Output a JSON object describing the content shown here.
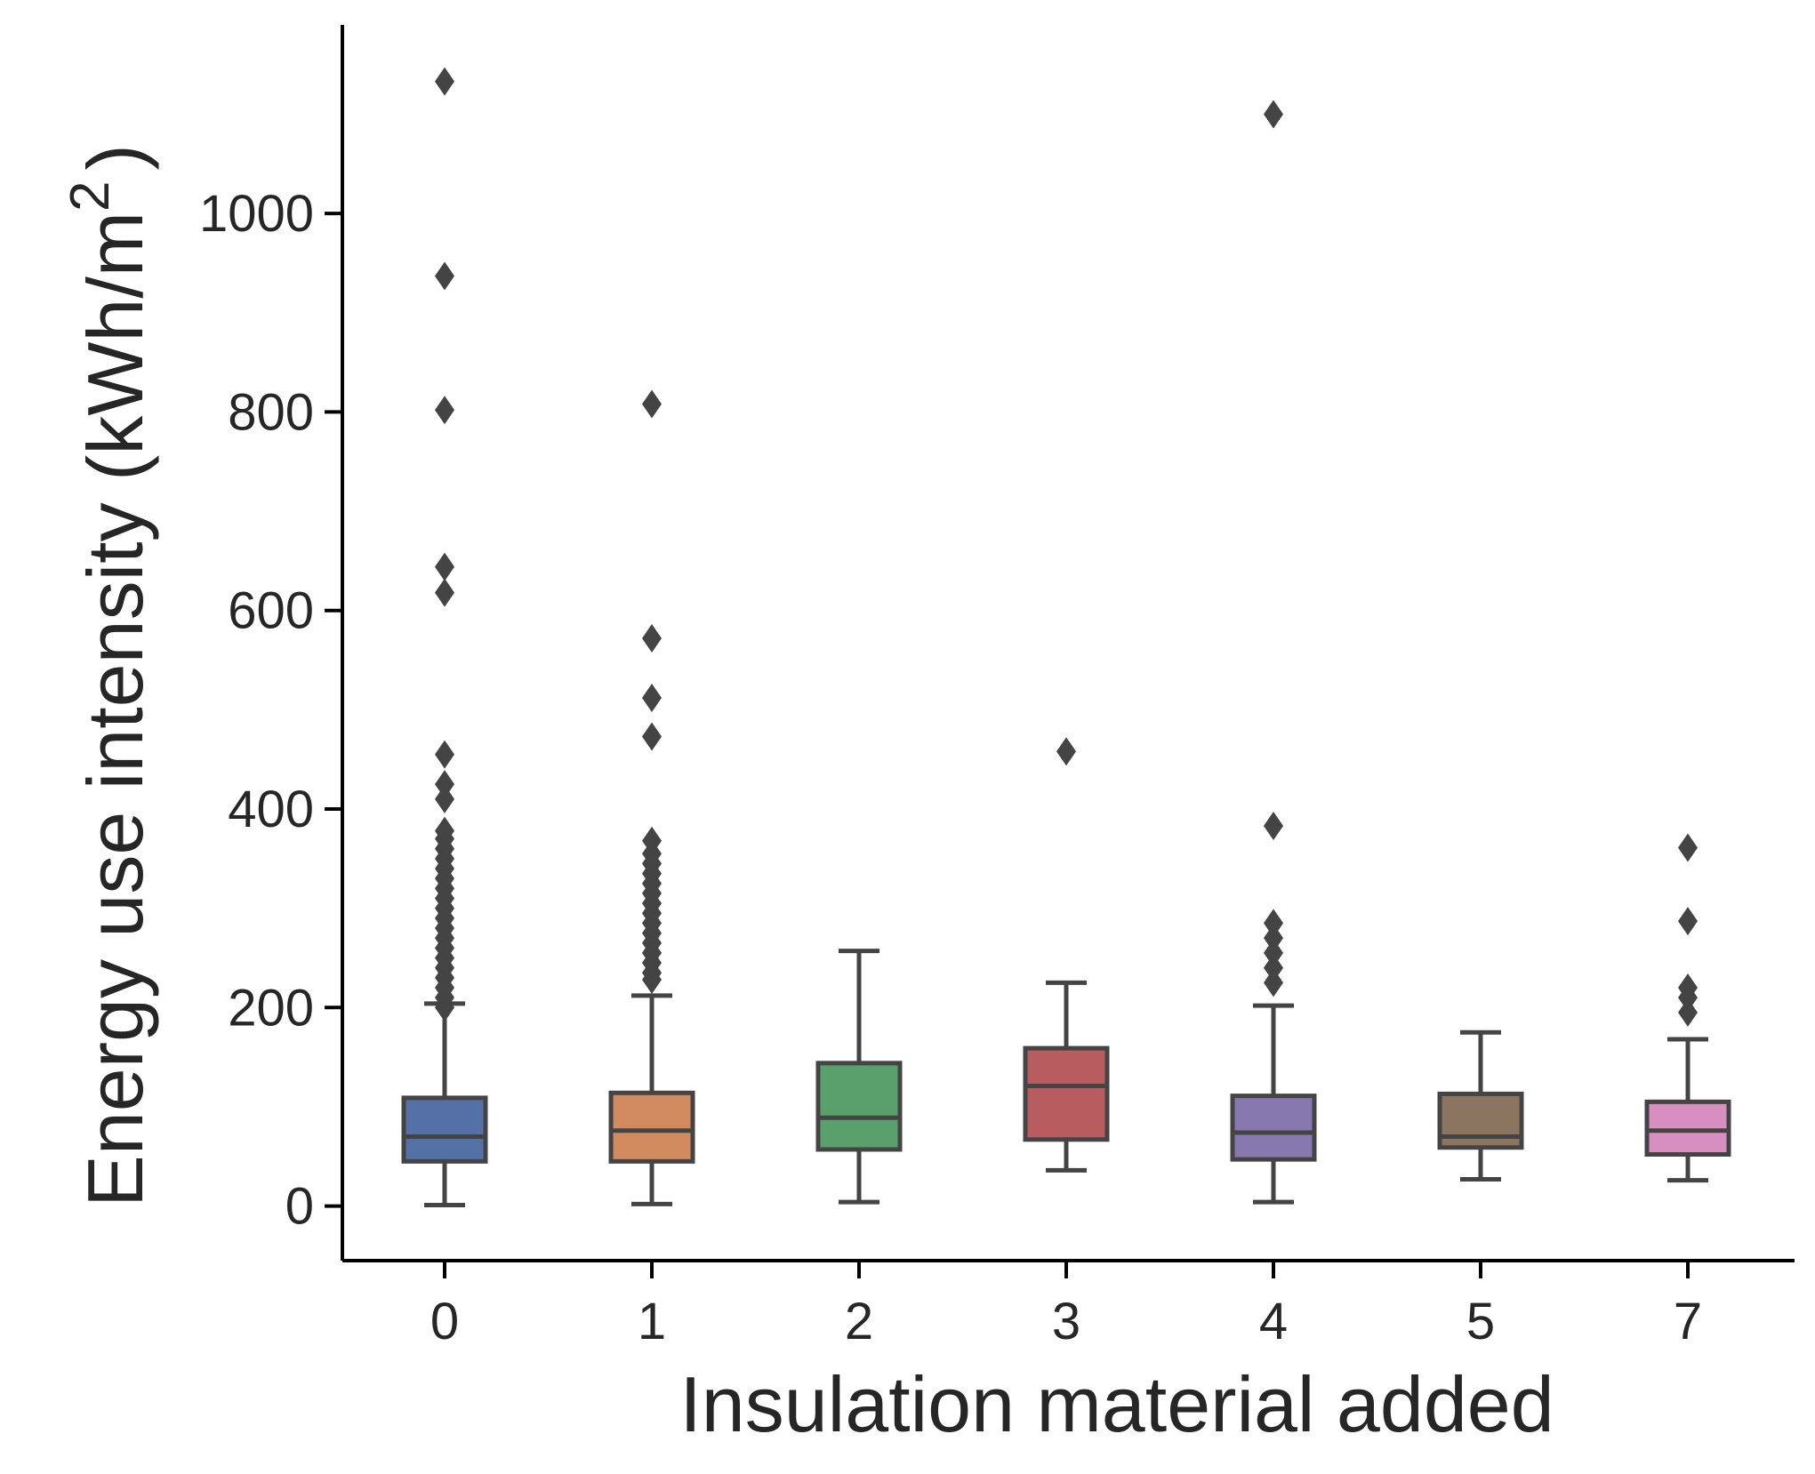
{
  "chart_data": {
    "type": "box",
    "xlabel": "Insulation material added",
    "ylabel": "Energy use intensity (kWh/m",
    "ylabel_superscript": "2",
    "ylabel_close": ")",
    "ylim": [
      -55,
      1190
    ],
    "yticks": [
      0,
      200,
      400,
      600,
      800,
      1000
    ],
    "ytick_labels": [
      "0",
      "200",
      "400",
      "600",
      "800",
      "1000"
    ],
    "categories": [
      "0",
      "1",
      "2",
      "3",
      "4",
      "5",
      "7"
    ],
    "grid": false,
    "legend": "none",
    "colors": {
      "edge": "#444444",
      "axis": "#000000",
      "text": "#262626",
      "boxes": [
        "#5471a7",
        "#d28a5f",
        "#5aa06c",
        "#b95c5f",
        "#8779b0",
        "#8b7561",
        "#d68fbf"
      ]
    },
    "boxes": [
      {
        "category": "0",
        "whislo": 1,
        "q1": 45,
        "med": 70,
        "q3": 109,
        "whishi": 204,
        "fliers": [
          1133,
          937,
          802,
          644,
          618,
          455,
          425,
          410,
          378,
          370,
          360,
          350,
          340,
          330,
          320,
          310,
          300,
          290,
          280,
          270,
          260,
          250,
          240,
          230,
          220,
          210,
          200
        ]
      },
      {
        "category": "1",
        "whislo": 2,
        "q1": 45,
        "med": 76,
        "q3": 114,
        "whishi": 212,
        "fliers": [
          808,
          572,
          512,
          473,
          368,
          355,
          345,
          335,
          325,
          315,
          305,
          295,
          285,
          275,
          265,
          255,
          245,
          235,
          228
        ]
      },
      {
        "category": "2",
        "whislo": 4,
        "q1": 57,
        "med": 89,
        "q3": 144,
        "whishi": 257,
        "fliers": []
      },
      {
        "category": "3",
        "whislo": 36,
        "q1": 67,
        "med": 121,
        "q3": 159,
        "whishi": 225,
        "fliers": [
          458
        ]
      },
      {
        "category": "4",
        "whislo": 4,
        "q1": 47,
        "med": 74,
        "q3": 111,
        "whishi": 202,
        "fliers": [
          1100,
          383,
          285,
          270,
          255,
          240,
          225
        ]
      },
      {
        "category": "5",
        "whislo": 27,
        "q1": 59,
        "med": 70,
        "q3": 113,
        "whishi": 175,
        "fliers": []
      },
      {
        "category": "7",
        "whislo": 26,
        "q1": 52,
        "med": 76,
        "q3": 105,
        "whishi": 168,
        "fliers": [
          361,
          287,
          220,
          210,
          195
        ]
      }
    ]
  }
}
